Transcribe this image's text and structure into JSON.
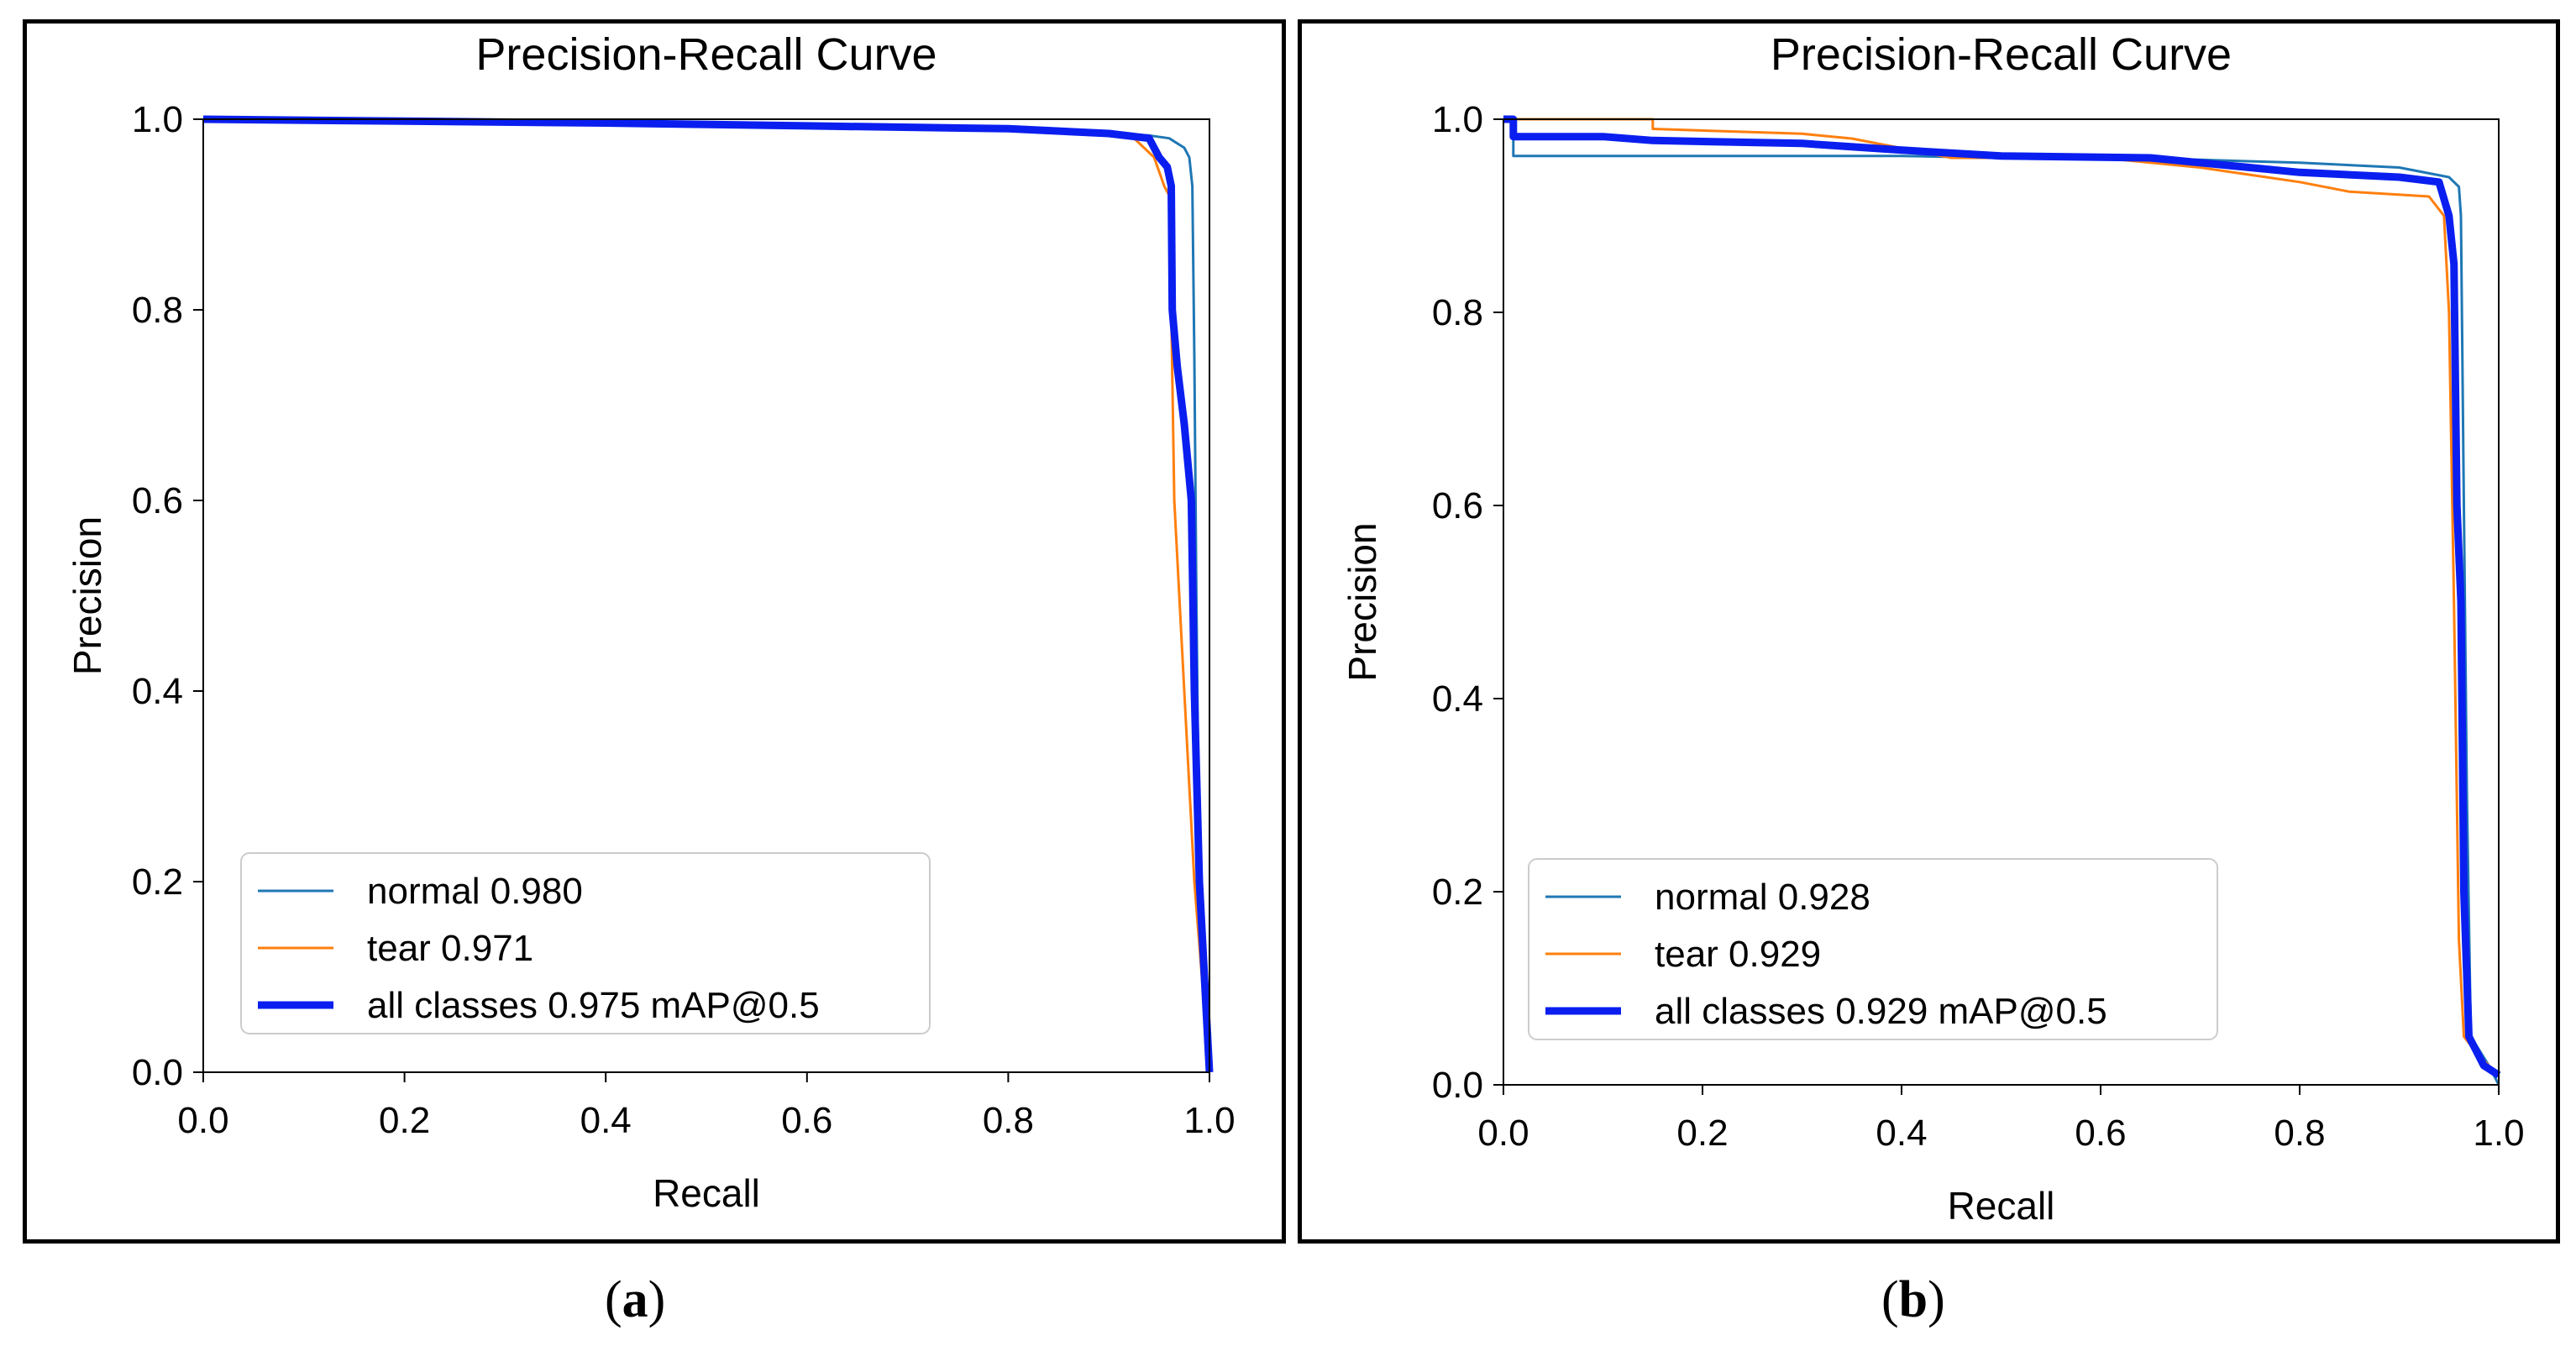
{
  "chart_data": [
    {
      "type": "line",
      "panel_label": "a",
      "title": "Precision-Recall Curve",
      "xlabel": "Recall",
      "ylabel": "Precision",
      "xlim": [
        0,
        1
      ],
      "ylim": [
        0,
        1
      ],
      "xticks": [
        "0.0",
        "0.2",
        "0.4",
        "0.6",
        "0.8",
        "1.0"
      ],
      "yticks": [
        "0.0",
        "0.2",
        "0.4",
        "0.6",
        "0.8",
        "1.0"
      ],
      "grid": false,
      "legend_position": "lower-center",
      "series": [
        {
          "name": "normal 0.980",
          "color": "#1f77b4",
          "stroke": "thin",
          "points": [
            [
              0.0,
              1.0
            ],
            [
              0.1,
              1.0
            ],
            [
              0.2,
              0.998
            ],
            [
              0.4,
              0.996
            ],
            [
              0.6,
              0.993
            ],
            [
              0.8,
              0.99
            ],
            [
              0.9,
              0.985
            ],
            [
              0.94,
              0.983
            ],
            [
              0.96,
              0.98
            ],
            [
              0.975,
              0.97
            ],
            [
              0.98,
              0.96
            ],
            [
              0.983,
              0.93
            ],
            [
              0.985,
              0.75
            ],
            [
              0.987,
              0.5
            ],
            [
              0.99,
              0.2
            ],
            [
              1.0,
              0.0
            ]
          ]
        },
        {
          "name": "tear 0.971",
          "color": "#ff7f0e",
          "stroke": "thin",
          "points": [
            [
              0.0,
              1.0
            ],
            [
              0.2,
              0.998
            ],
            [
              0.4,
              0.997
            ],
            [
              0.6,
              0.995
            ],
            [
              0.75,
              0.993
            ],
            [
              0.85,
              0.99
            ],
            [
              0.92,
              0.985
            ],
            [
              0.945,
              0.96
            ],
            [
              0.955,
              0.93
            ],
            [
              0.96,
              0.92
            ],
            [
              0.962,
              0.8
            ],
            [
              0.965,
              0.6
            ],
            [
              0.975,
              0.4
            ],
            [
              0.985,
              0.2
            ],
            [
              1.0,
              0.0
            ]
          ]
        },
        {
          "name": "all classes 0.975 mAP@0.5",
          "color": "#0a1fef",
          "stroke": "thick",
          "points": [
            [
              0.0,
              1.0
            ],
            [
              0.2,
              0.998
            ],
            [
              0.4,
              0.996
            ],
            [
              0.6,
              0.993
            ],
            [
              0.8,
              0.99
            ],
            [
              0.9,
              0.985
            ],
            [
              0.94,
              0.98
            ],
            [
              0.95,
              0.96
            ],
            [
              0.958,
              0.95
            ],
            [
              0.962,
              0.93
            ],
            [
              0.963,
              0.8
            ],
            [
              0.968,
              0.74
            ],
            [
              0.975,
              0.68
            ],
            [
              0.982,
              0.6
            ],
            [
              0.985,
              0.4
            ],
            [
              0.99,
              0.2
            ],
            [
              1.0,
              0.0
            ]
          ]
        }
      ]
    },
    {
      "type": "line",
      "panel_label": "b",
      "title": "Precision-Recall Curve",
      "xlabel": "Recall",
      "ylabel": "Precision",
      "xlim": [
        0,
        1
      ],
      "ylim": [
        0,
        1
      ],
      "xticks": [
        "0.0",
        "0.2",
        "0.4",
        "0.6",
        "0.8",
        "1.0"
      ],
      "yticks": [
        "0.0",
        "0.2",
        "0.4",
        "0.6",
        "0.8",
        "1.0"
      ],
      "grid": false,
      "legend_position": "lower-center",
      "series": [
        {
          "name": "normal 0.928",
          "color": "#1f77b4",
          "stroke": "thin",
          "points": [
            [
              0.0,
              1.0
            ],
            [
              0.01,
              1.0
            ],
            [
              0.01,
              0.962
            ],
            [
              0.1,
              0.962
            ],
            [
              0.2,
              0.962
            ],
            [
              0.4,
              0.962
            ],
            [
              0.5,
              0.96
            ],
            [
              0.6,
              0.96
            ],
            [
              0.7,
              0.958
            ],
            [
              0.8,
              0.955
            ],
            [
              0.9,
              0.95
            ],
            [
              0.95,
              0.94
            ],
            [
              0.96,
              0.93
            ],
            [
              0.962,
              0.9
            ],
            [
              0.965,
              0.6
            ],
            [
              0.968,
              0.3
            ],
            [
              0.972,
              0.05
            ],
            [
              0.99,
              0.02
            ],
            [
              1.0,
              0.0
            ]
          ]
        },
        {
          "name": "tear 0.929",
          "color": "#ff7f0e",
          "stroke": "thin",
          "points": [
            [
              0.0,
              1.0
            ],
            [
              0.15,
              1.0
            ],
            [
              0.15,
              0.99
            ],
            [
              0.3,
              0.985
            ],
            [
              0.35,
              0.98
            ],
            [
              0.4,
              0.97
            ],
            [
              0.45,
              0.96
            ],
            [
              0.6,
              0.96
            ],
            [
              0.7,
              0.95
            ],
            [
              0.8,
              0.935
            ],
            [
              0.85,
              0.925
            ],
            [
              0.93,
              0.92
            ],
            [
              0.945,
              0.9
            ],
            [
              0.95,
              0.8
            ],
            [
              0.955,
              0.5
            ],
            [
              0.96,
              0.15
            ],
            [
              0.965,
              0.05
            ],
            [
              0.98,
              0.03
            ],
            [
              1.0,
              0.01
            ]
          ]
        },
        {
          "name": "all classes 0.929 mAP@0.5",
          "color": "#0a1fef",
          "stroke": "thick",
          "points": [
            [
              0.0,
              1.0
            ],
            [
              0.01,
              1.0
            ],
            [
              0.01,
              0.982
            ],
            [
              0.1,
              0.982
            ],
            [
              0.15,
              0.978
            ],
            [
              0.3,
              0.975
            ],
            [
              0.4,
              0.968
            ],
            [
              0.5,
              0.962
            ],
            [
              0.65,
              0.96
            ],
            [
              0.7,
              0.955
            ],
            [
              0.8,
              0.945
            ],
            [
              0.9,
              0.94
            ],
            [
              0.94,
              0.935
            ],
            [
              0.95,
              0.9
            ],
            [
              0.955,
              0.85
            ],
            [
              0.958,
              0.6
            ],
            [
              0.962,
              0.5
            ],
            [
              0.965,
              0.2
            ],
            [
              0.97,
              0.05
            ],
            [
              0.985,
              0.02
            ],
            [
              1.0,
              0.01
            ]
          ]
        }
      ]
    }
  ]
}
